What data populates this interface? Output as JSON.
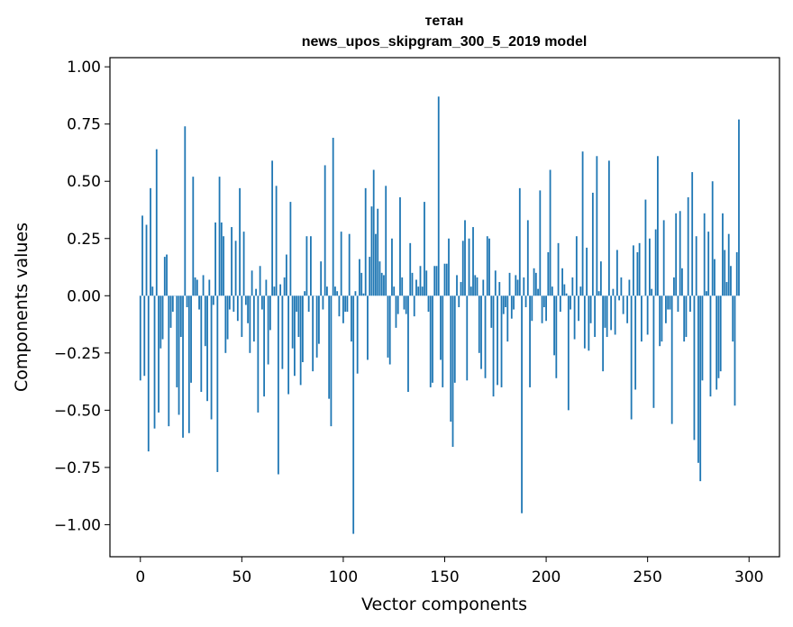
{
  "chart_data": {
    "type": "bar",
    "title": "тетан",
    "subtitle": "news_upos_skipgram_300_5_2019 model",
    "xlabel": "Vector components",
    "ylabel": "Components values",
    "xlim": [
      -15,
      315
    ],
    "ylim": [
      -1.14,
      1.04
    ],
    "xticks": [
      0,
      50,
      100,
      150,
      200,
      250,
      300
    ],
    "yticks": [
      -1.0,
      -0.75,
      -0.5,
      -0.25,
      0.0,
      0.25,
      0.5,
      0.75,
      1.0
    ],
    "xtick_labels": [
      "0",
      "50",
      "100",
      "150",
      "200",
      "250",
      "300"
    ],
    "ytick_labels": [
      "−1.00",
      "−0.75",
      "−0.50",
      "−0.25",
      "0.00",
      "0.25",
      "0.50",
      "0.75",
      "1.00"
    ],
    "bar_color": "#1f77b4",
    "values": [
      -0.37,
      0.35,
      -0.35,
      0.31,
      -0.68,
      0.47,
      0.04,
      -0.58,
      0.64,
      -0.51,
      -0.23,
      -0.19,
      0.17,
      0.18,
      -0.57,
      -0.14,
      -0.07,
      0.0,
      -0.4,
      -0.52,
      -0.18,
      -0.62,
      0.74,
      -0.05,
      -0.6,
      -0.38,
      0.52,
      0.08,
      0.07,
      -0.06,
      -0.42,
      0.09,
      -0.22,
      -0.46,
      0.07,
      -0.54,
      -0.04,
      0.32,
      -0.77,
      0.52,
      0.32,
      0.26,
      -0.25,
      -0.19,
      -0.06,
      0.3,
      -0.07,
      0.24,
      -0.11,
      0.47,
      -0.18,
      0.28,
      -0.04,
      -0.12,
      -0.25,
      0.11,
      -0.2,
      0.03,
      -0.51,
      0.13,
      -0.06,
      -0.44,
      0.07,
      -0.3,
      -0.15,
      0.59,
      0.04,
      0.48,
      -0.78,
      0.05,
      -0.32,
      0.08,
      0.18,
      -0.43,
      0.41,
      -0.23,
      -0.35,
      -0.07,
      -0.18,
      -0.39,
      -0.29,
      0.02,
      0.26,
      -0.07,
      0.26,
      -0.33,
      0.0,
      -0.27,
      -0.21,
      0.15,
      -0.06,
      0.57,
      0.04,
      -0.45,
      -0.57,
      0.69,
      0.04,
      0.02,
      -0.09,
      0.28,
      -0.12,
      -0.07,
      -0.07,
      0.27,
      -0.2,
      -1.04,
      0.02,
      -0.34,
      0.16,
      0.1,
      0.01,
      0.47,
      -0.28,
      0.17,
      0.39,
      0.55,
      0.27,
      0.38,
      0.15,
      0.1,
      0.09,
      0.48,
      -0.27,
      -0.3,
      0.25,
      0.04,
      -0.14,
      -0.08,
      0.43,
      0.08,
      -0.06,
      -0.08,
      -0.42,
      0.23,
      0.1,
      -0.09,
      0.07,
      0.04,
      0.13,
      0.04,
      0.41,
      0.11,
      -0.07,
      -0.4,
      -0.38,
      0.13,
      0.13,
      0.87,
      -0.28,
      -0.4,
      0.14,
      0.14,
      0.25,
      -0.55,
      -0.66,
      -0.38,
      0.09,
      -0.05,
      0.06,
      0.24,
      0.33,
      -0.37,
      0.25,
      0.04,
      0.3,
      0.09,
      0.08,
      -0.25,
      -0.32,
      0.07,
      -0.36,
      0.26,
      0.25,
      -0.14,
      -0.44,
      0.11,
      -0.39,
      0.06,
      -0.4,
      -0.08,
      -0.05,
      -0.2,
      0.1,
      -0.1,
      -0.06,
      0.09,
      0.07,
      0.47,
      -0.95,
      0.08,
      -0.05,
      0.33,
      -0.4,
      -0.11,
      0.12,
      0.1,
      0.03,
      0.46,
      -0.12,
      -0.05,
      -0.11,
      0.19,
      0.55,
      0.04,
      -0.26,
      -0.36,
      0.23,
      -0.07,
      0.12,
      0.05,
      0.01,
      -0.5,
      -0.06,
      0.08,
      -0.19,
      0.26,
      -0.11,
      0.04,
      0.63,
      -0.23,
      0.21,
      -0.24,
      -0.12,
      0.45,
      -0.18,
      0.61,
      0.02,
      0.15,
      -0.33,
      -0.14,
      -0.18,
      0.59,
      -0.15,
      0.03,
      -0.17,
      0.2,
      -0.02,
      0.08,
      -0.08,
      0.0,
      -0.12,
      0.07,
      -0.54,
      0.22,
      -0.41,
      0.19,
      0.23,
      -0.2,
      0.0,
      0.42,
      -0.17,
      0.25,
      0.03,
      -0.49,
      0.29,
      0.61,
      -0.22,
      -0.2,
      0.33,
      -0.12,
      -0.06,
      -0.06,
      -0.56,
      0.08,
      0.36,
      -0.07,
      0.37,
      0.12,
      -0.2,
      -0.18,
      0.43,
      -0.07,
      0.54,
      -0.63,
      0.26,
      -0.73,
      -0.81,
      -0.37,
      0.36,
      0.02,
      0.28,
      -0.44,
      0.5,
      0.16,
      -0.41,
      -0.36,
      -0.33,
      0.36,
      0.2,
      0.06,
      0.27,
      0.13,
      -0.2,
      -0.48,
      0.19,
      0.77
    ]
  }
}
